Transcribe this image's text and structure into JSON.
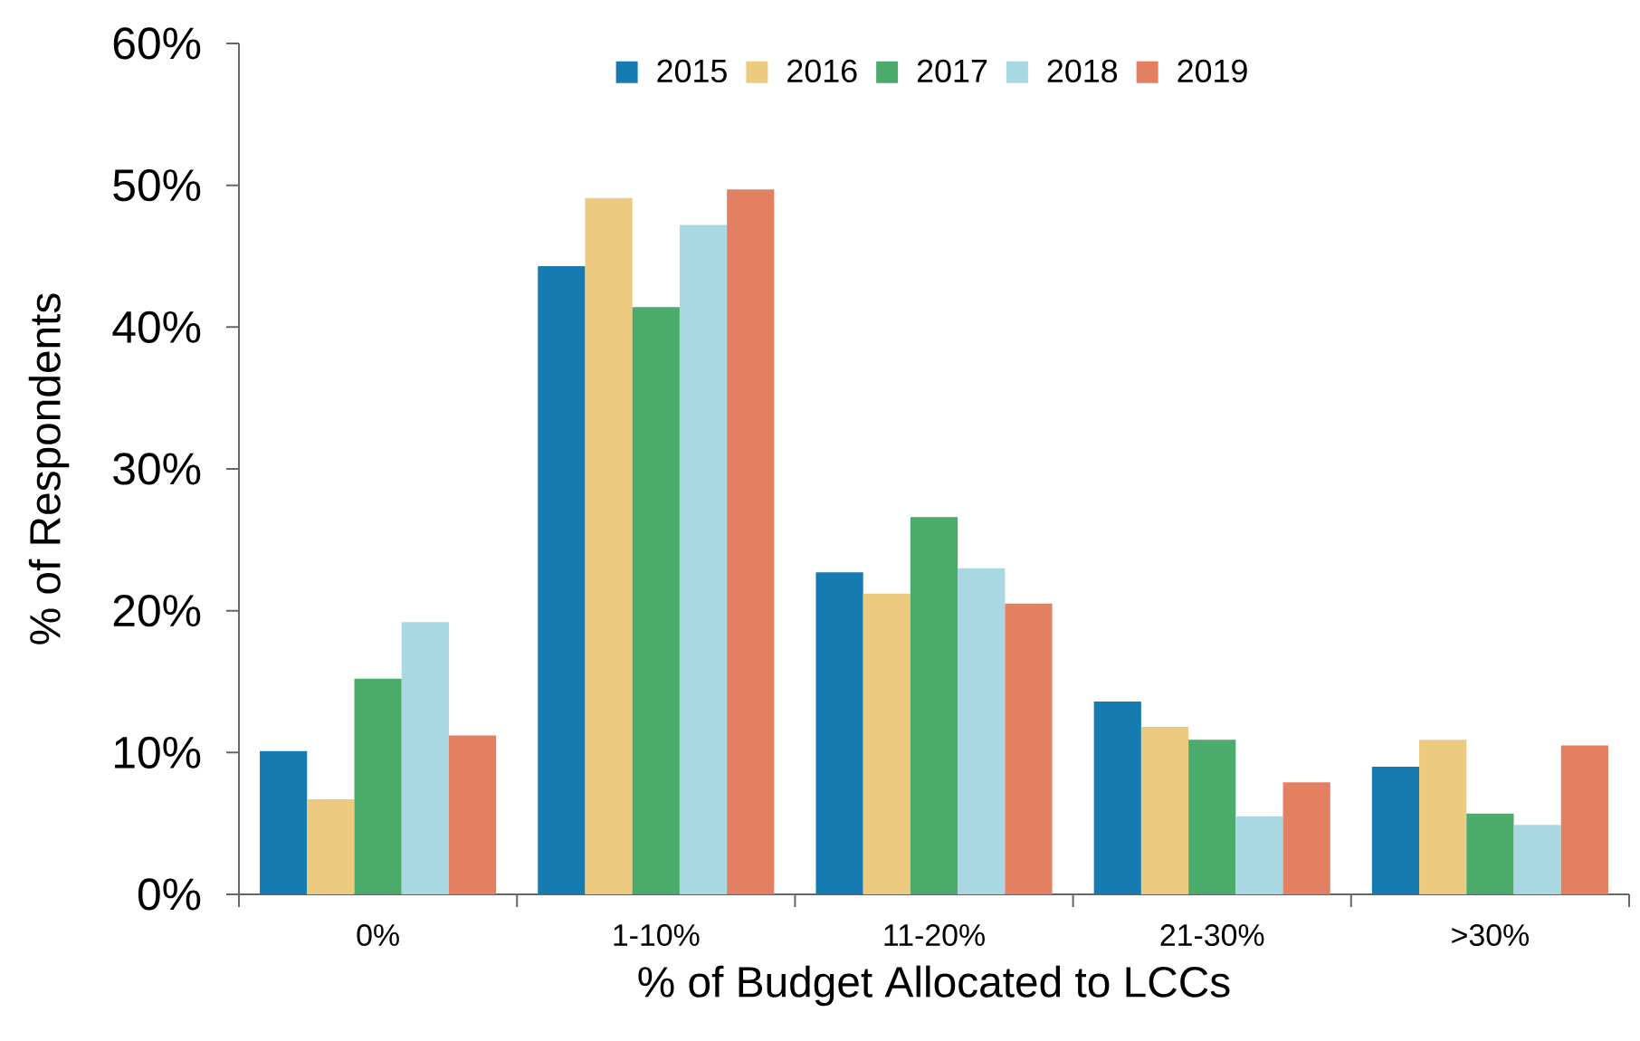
{
  "chart_data": {
    "type": "bar",
    "xlabel": "% of Budget Allocated to LCCs",
    "ylabel": "% of Respondents",
    "categories": [
      "0%",
      "1-10%",
      "11-20%",
      "21-30%",
      ">30%"
    ],
    "series": [
      {
        "name": "2015",
        "color": "#157bb0",
        "values": [
          10.1,
          44.3,
          22.7,
          13.6,
          9.0
        ]
      },
      {
        "name": "2016",
        "color": "#ecca80",
        "values": [
          6.7,
          49.1,
          21.2,
          11.8,
          10.9
        ]
      },
      {
        "name": "2017",
        "color": "#4aab6a",
        "values": [
          15.2,
          41.4,
          26.6,
          10.9,
          5.7
        ]
      },
      {
        "name": "2018",
        "color": "#a9d7e2",
        "values": [
          19.2,
          47.2,
          23.0,
          5.5,
          4.9
        ]
      },
      {
        "name": "2019",
        "color": "#e48062",
        "values": [
          11.2,
          49.7,
          20.5,
          7.9,
          10.5
        ]
      }
    ],
    "ylim": [
      0,
      60
    ],
    "yticks": [
      {
        "value": 0,
        "label": "0%"
      },
      {
        "value": 10,
        "label": "10%"
      },
      {
        "value": 20,
        "label": "20%"
      },
      {
        "value": 30,
        "label": "30%"
      },
      {
        "value": 40,
        "label": "40%"
      },
      {
        "value": 50,
        "label": "50%"
      },
      {
        "value": 60,
        "label": "60%"
      }
    ],
    "grid": false,
    "legend": "top"
  }
}
